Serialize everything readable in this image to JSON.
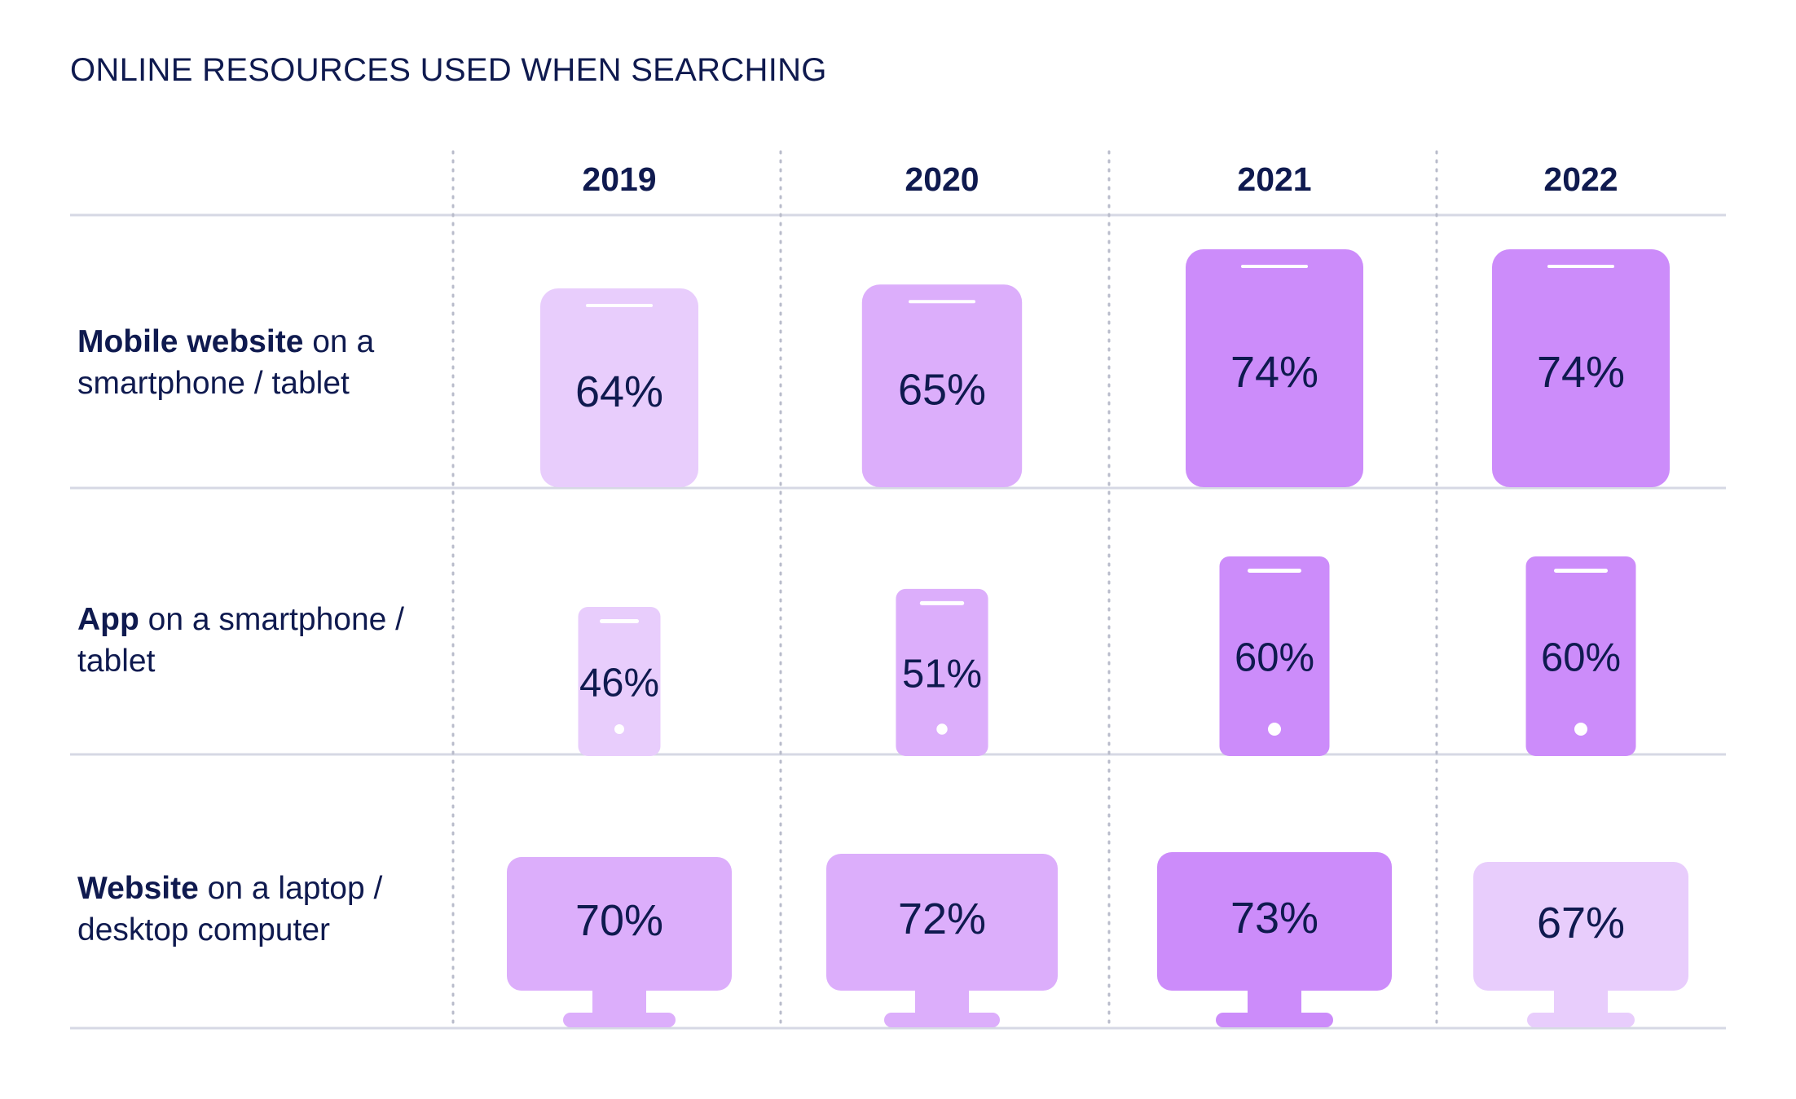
{
  "title": "ONLINE RESOURCES USED WHEN SEARCHING",
  "rows": [
    {
      "bold": "Mobile website",
      "rest": " on a smartphone / tablet"
    },
    {
      "bold": "App",
      "rest": " on a smartphone / tablet"
    },
    {
      "bold": "Website",
      "rest": " on a laptop / desktop computer"
    }
  ],
  "chart_data": {
    "type": "table",
    "title": "ONLINE RESOURCES USED WHEN SEARCHING",
    "columns": [
      "2019",
      "2020",
      "2021",
      "2022"
    ],
    "series": [
      {
        "name": "Mobile website on a smartphone / tablet",
        "icon": "tablet-icon",
        "values": [
          64,
          65,
          74,
          74
        ],
        "labels": [
          "64%",
          "65%",
          "74%",
          "74%"
        ]
      },
      {
        "name": "App on a smartphone / tablet",
        "icon": "smartphone-icon",
        "values": [
          46,
          51,
          60,
          60
        ],
        "labels": [
          "46%",
          "51%",
          "60%",
          "60%"
        ]
      },
      {
        "name": "Website on a laptop / desktop computer",
        "icon": "desktop-monitor-icon",
        "values": [
          70,
          72,
          73,
          67
        ],
        "labels": [
          "70%",
          "72%",
          "73%",
          "67%"
        ]
      }
    ]
  },
  "colors": {
    "text": "#0f1a4f",
    "gridline": "#d6d8e4",
    "divider_dots": "#b9bccb",
    "fill_light": "#e8cdfc",
    "fill_medium": "#dcaefb",
    "fill_dark": "#cc8cfa",
    "device_detail": "#ffffff"
  }
}
